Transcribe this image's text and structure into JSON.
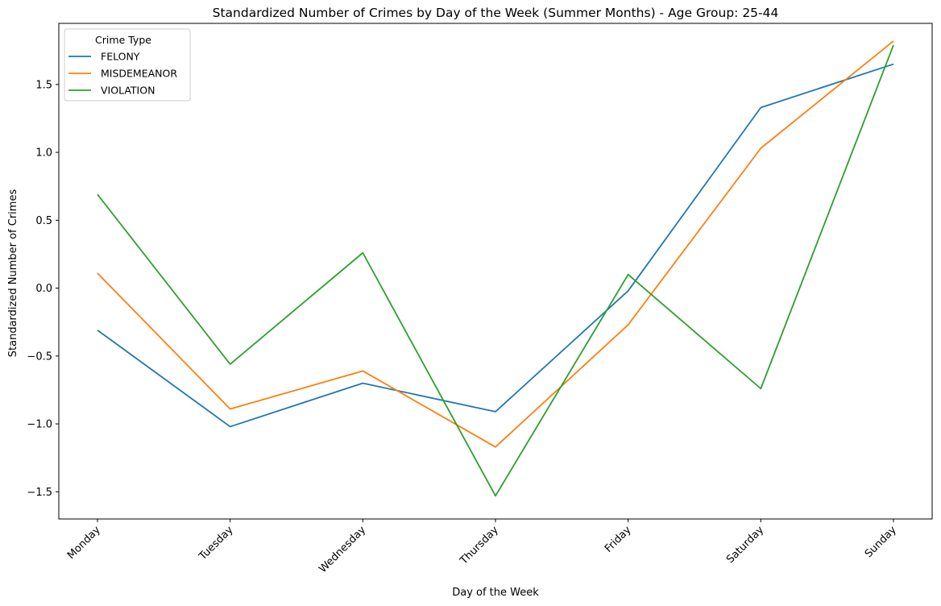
{
  "chart_data": {
    "type": "line",
    "title": "Standardized Number of Crimes by Day of the Week (Summer Months) - Age Group: 25-44",
    "xlabel": "Day of the Week",
    "ylabel": "Standardized Number of Crimes",
    "categories": [
      "Monday",
      "Tuesday",
      "Wednesday",
      "Thursday",
      "Friday",
      "Saturday",
      "Sunday"
    ],
    "ylim": [
      -1.7,
      1.95
    ],
    "yticks": [
      -1.5,
      -1.0,
      -0.5,
      0.0,
      0.5,
      1.0,
      1.5
    ],
    "ytick_labels": [
      "−1.5",
      "−1.0",
      "−0.5",
      "0.0",
      "0.5",
      "1.0",
      "1.5"
    ],
    "grid": false,
    "legend": {
      "title": "Crime Type",
      "placement": "top-left"
    },
    "series": [
      {
        "name": "FELONY",
        "color": "#1f77b4",
        "values": [
          -0.31,
          -1.02,
          -0.7,
          -0.91,
          -0.02,
          1.33,
          1.65
        ]
      },
      {
        "name": "MISDEMEANOR",
        "color": "#ff7f0e",
        "values": [
          0.11,
          -0.89,
          -0.61,
          -1.17,
          -0.27,
          1.03,
          1.82
        ]
      },
      {
        "name": "VIOLATION",
        "color": "#2ca02c",
        "values": [
          0.69,
          -0.56,
          0.26,
          -1.53,
          0.1,
          -0.74,
          1.79
        ]
      }
    ]
  }
}
